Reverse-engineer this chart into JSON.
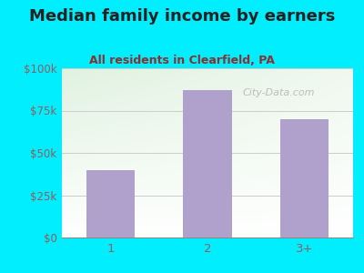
{
  "title": "Median family income by earners",
  "subtitle": "All residents in Clearfield, PA",
  "categories": [
    "1",
    "2",
    "3+"
  ],
  "values": [
    40000,
    87000,
    70000
  ],
  "bar_color": "#b0a0cc",
  "background_outer": "#00eeff",
  "title_color": "#222222",
  "subtitle_color": "#8b3030",
  "tick_color": "#8b6060",
  "ylim": [
    0,
    100000
  ],
  "yticks": [
    0,
    25000,
    50000,
    75000,
    100000
  ],
  "ytick_labels": [
    "$0",
    "$25k",
    "$50k",
    "$75k",
    "$100k"
  ],
  "watermark": "City-Data.com",
  "title_fontsize": 13,
  "subtitle_fontsize": 9,
  "tick_fontsize": 8.5
}
